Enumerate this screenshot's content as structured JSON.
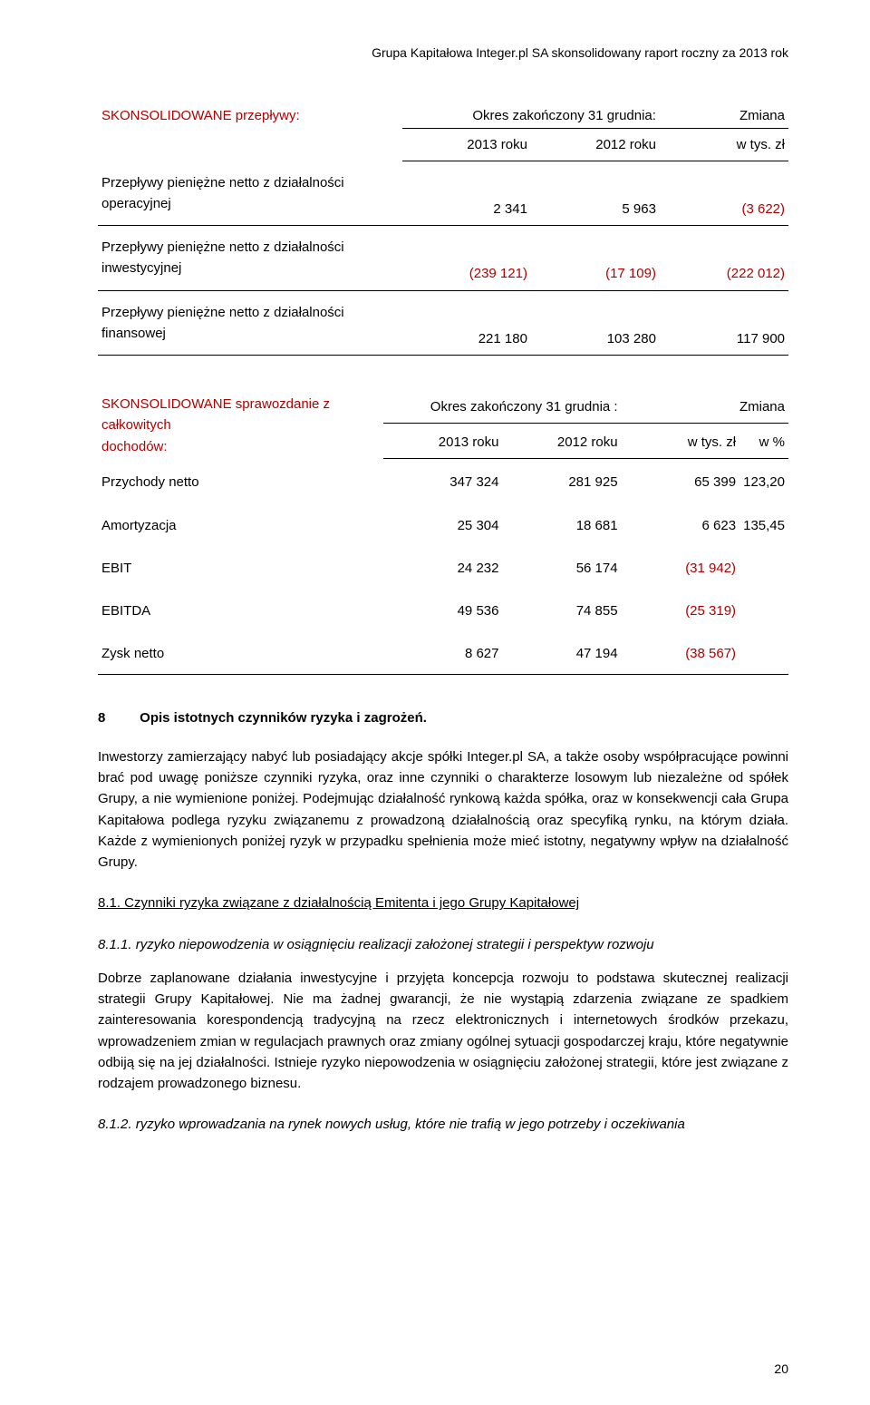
{
  "header": {
    "line": "Grupa Kapitałowa Integer.pl SA skonsolidowany raport roczny za 2013 rok"
  },
  "negative_color": "#b00000",
  "accent_color": "#b00000",
  "t1": {
    "title": "SKONSOLIDOWANE przepływy:",
    "period": "Okres zakończony 31 grudnia:",
    "change": "Zmiana",
    "h_y1": "2013 roku",
    "h_y2": "2012 roku",
    "h_unit": "w tys. zł",
    "r1": {
      "label": "Przepływy pieniężne netto z działalności operacyjnej",
      "y1": "2 341",
      "y2": "5 963",
      "chg": "(3 622)"
    },
    "r2": {
      "label": "Przepływy pieniężne netto z działalności inwestycyjnej",
      "y1": "(239 121)",
      "y2": "(17 109)",
      "chg": "(222 012)"
    },
    "r3": {
      "label": "Przepływy pieniężne netto z działalności finansowej",
      "y1": "221 180",
      "y2": "103 280",
      "chg": "117 900"
    }
  },
  "t2": {
    "title1": "SKONSOLIDOWANE sprawozdanie z całkowitych",
    "title2": "dochodów:",
    "period": "Okres zakończony 31 grudnia :",
    "change": "Zmiana",
    "h_y1": "2013 roku",
    "h_y2": "2012 roku",
    "h_unit": "w tys. zł",
    "h_pct": "w %",
    "rows": [
      {
        "label": "Przychody netto",
        "y1": "347 324",
        "y2": "281 925",
        "chg": "65 399",
        "pct": "123,20"
      },
      {
        "label": "Amortyzacja",
        "y1": "25 304",
        "y2": "18 681",
        "chg": "6 623",
        "pct": "135,45"
      },
      {
        "label": "EBIT",
        "y1": "24 232",
        "y2": "56 174",
        "chg": "(31 942)",
        "pct": ""
      },
      {
        "label": "EBITDA",
        "y1": "49 536",
        "y2": "74 855",
        "chg": "(25 319)",
        "pct": ""
      },
      {
        "label": "Zysk netto",
        "y1": "8 627",
        "y2": "47 194",
        "chg": "(38 567)",
        "pct": ""
      }
    ]
  },
  "section8": {
    "num": "8",
    "title": "Opis istotnych czynników ryzyka i zagrożeń.",
    "p1": "Inwestorzy zamierzający nabyć lub posiadający akcje spółki Integer.pl SA, a także osoby współpracujące powinni brać pod uwagę poniższe czynniki ryzyka, oraz inne czynniki o charakterze losowym lub niezależne od spółek Grupy, a nie wymienione poniżej. Podejmując działalność rynkową każda spółka, oraz w konsekwencji cała Grupa Kapitałowa podlega ryzyku związanemu z prowadzoną działalnością oraz specyfiką rynku, na którym działa. Każde z wymienionych poniżej ryzyk w przypadku spełnienia może mieć istotny, negatywny wpływ na działalność Grupy.",
    "sub81": "8.1. Czynniki ryzyka związane z działalnością Emitenta i jego Grupy Kapitałowej",
    "sub811": "8.1.1. ryzyko niepowodzenia w osiągnięciu realizacji założonej strategii i perspektyw rozwoju",
    "p811": "Dobrze zaplanowane działania inwestycyjne i przyjęta koncepcja rozwoju to podstawa skutecznej realizacji strategii Grupy Kapitałowej. Nie ma żadnej gwarancji, że nie wystąpią zdarzenia związane ze spadkiem zainteresowania korespondencją tradycyjną na rzecz elektronicznych i internetowych środków przekazu, wprowadzeniem zmian w regulacjach prawnych oraz zmiany ogólnej sytuacji gospodarczej kraju, które negatywnie odbiją się na jej działalności. Istnieje ryzyko niepowodzenia w osiągnięciu założonej strategii, które jest związane z rodzajem prowadzonego biznesu.",
    "sub812": "8.1.2. ryzyko wprowadzania na rynek nowych usług, które nie trafią w jego potrzeby i oczekiwania"
  },
  "page_number": "20"
}
